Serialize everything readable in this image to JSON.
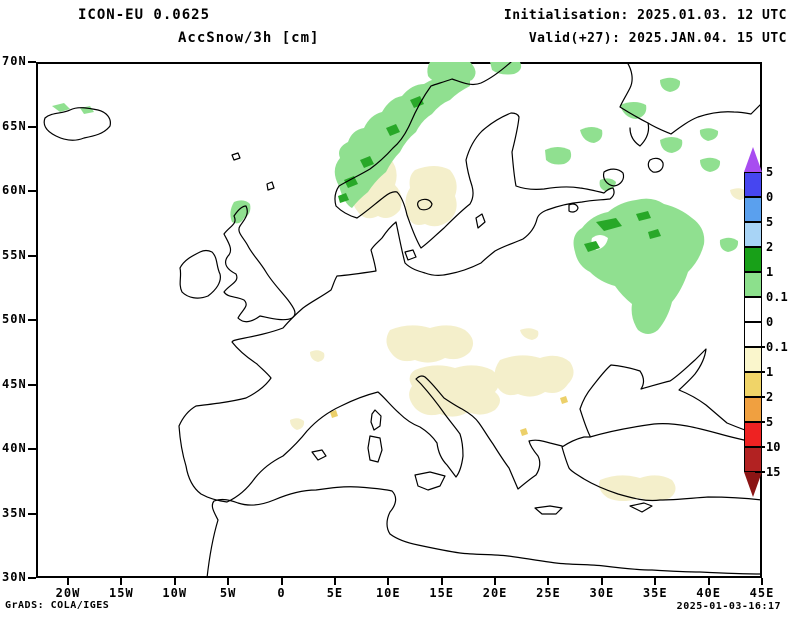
{
  "header": {
    "model": "ICON-EU 0.0625",
    "product": "AccSnow/3h [cm]",
    "init": "Initialisation: 2025.01.03. 12 UTC",
    "valid": "Valid(+27): 2025.JAN.04. 15 UTC"
  },
  "footer": {
    "grads": "GrADS: COLA/IGES",
    "timestamp": "2025-01-03-16:17"
  },
  "map": {
    "lat_labels": [
      "70N",
      "65N",
      "60N",
      "55N",
      "50N",
      "45N",
      "40N",
      "35N",
      "30N"
    ],
    "lon_labels": [
      "20W",
      "15W",
      "10W",
      "5W",
      "0",
      "5E",
      "10E",
      "15E",
      "20E",
      "25E",
      "30E",
      "35E",
      "40E",
      "45E"
    ],
    "shading_colors": {
      "light_green": "#90e090",
      "dark_green": "#28a828",
      "pale_yellow": "#f4efcb",
      "gold": "#ecd06a"
    }
  },
  "colorbar": {
    "segments": [
      {
        "name": "arrow-up",
        "color": "#a84df0",
        "arrow": "up"
      },
      {
        "name": "seg-1",
        "color": "#4646f0"
      },
      {
        "name": "seg-2",
        "color": "#5aa0ee"
      },
      {
        "name": "seg-3",
        "color": "#a8d4f6"
      },
      {
        "name": "seg-4",
        "color": "#18a018"
      },
      {
        "name": "seg-5",
        "color": "#8ce08c"
      },
      {
        "name": "seg-6",
        "color": "#ffffff"
      },
      {
        "name": "seg-7",
        "color": "#ffffff"
      },
      {
        "name": "seg-8",
        "color": "#faf6cc"
      },
      {
        "name": "seg-9",
        "color": "#f0d468"
      },
      {
        "name": "seg-10",
        "color": "#f0a040"
      },
      {
        "name": "seg-11",
        "color": "#ee2222"
      },
      {
        "name": "seg-12",
        "color": "#b22222"
      },
      {
        "name": "arrow-down",
        "color": "#8b1515",
        "arrow": "down"
      }
    ],
    "labels": [
      {
        "text": "5",
        "tick": false
      },
      {
        "text": "0",
        "tick": false
      },
      {
        "text": "5",
        "tick": false
      },
      {
        "text": "2",
        "tick": false
      },
      {
        "text": "1",
        "tick": false
      },
      {
        "text": "0.1",
        "tick": false
      },
      {
        "text": "0",
        "tick": false
      },
      {
        "text": "0.1",
        "tick": true
      },
      {
        "text": "1",
        "tick": true
      },
      {
        "text": "2",
        "tick": true
      },
      {
        "text": "5",
        "tick": true
      },
      {
        "text": "10",
        "tick": true
      },
      {
        "text": "15",
        "tick": true
      }
    ]
  }
}
